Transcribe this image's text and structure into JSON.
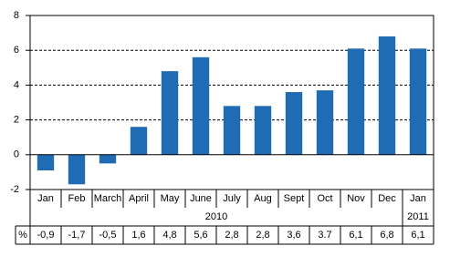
{
  "chart_data": {
    "type": "bar",
    "groups": [
      {
        "label": "2010",
        "categories": [
          "Jan",
          "Feb",
          "March",
          "April",
          "May",
          "June",
          "July",
          "Aug",
          "Sept",
          "Oct",
          "Nov",
          "Dec"
        ]
      },
      {
        "label": "2011",
        "categories": [
          "Jan"
        ]
      }
    ],
    "values": [
      -0.9,
      -1.7,
      -0.5,
      1.6,
      4.8,
      5.6,
      2.8,
      2.8,
      3.6,
      3.7,
      6.1,
      6.8,
      6.1
    ],
    "value_labels": [
      "-0,9",
      "-1,7",
      "-0,5",
      "1,6",
      "4,8",
      "5,6",
      "2,8",
      "2,8",
      "3,6",
      "3.7",
      "6,1",
      "6,8",
      "6,1"
    ],
    "table_row_label": "%",
    "color": "#1f6cb5",
    "ylim": [
      -2,
      8
    ],
    "yticks": [
      -2,
      0,
      2,
      4,
      6,
      8
    ],
    "grid": true
  }
}
